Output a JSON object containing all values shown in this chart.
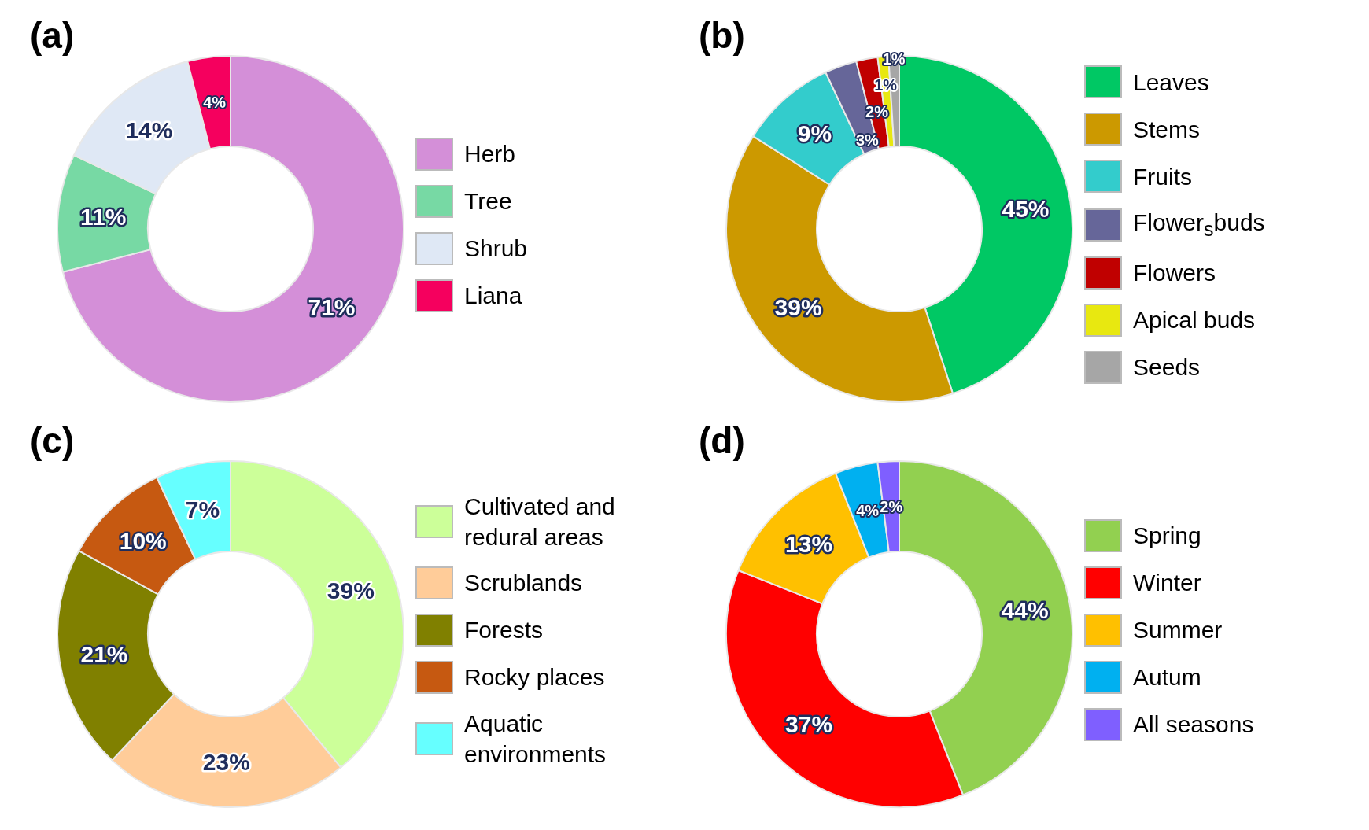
{
  "chart_data": [
    {
      "type": "donut",
      "title": "(a)",
      "categories": [
        "Herb",
        "Tree",
        "Shrub",
        "Liana"
      ],
      "values": [
        71,
        11,
        14,
        4
      ],
      "value_labels": [
        "71%",
        "11%",
        "14%",
        "4%"
      ],
      "colors": [
        "#d48fd8",
        "#77d9a4",
        "#dfe8f5",
        "#f5005e"
      ],
      "legend": "right"
    },
    {
      "type": "donut",
      "title": "(b)",
      "categories": [
        "Leaves",
        "Stems",
        "Fruits",
        "Flower$_{s}$buds",
        "Flowers",
        "Apical buds",
        "Seeds"
      ],
      "values": [
        45,
        39,
        9,
        3,
        2,
        1,
        1
      ],
      "value_labels": [
        "45%",
        "39%",
        "9%",
        "3%",
        "2%",
        "1%",
        "1%"
      ],
      "colors": [
        "#00c864",
        "#cc9900",
        "#33cccc",
        "#666699",
        "#c00000",
        "#e8e810",
        "#a6a6a6"
      ],
      "legend": "right"
    },
    {
      "type": "donut",
      "title": "(c)",
      "categories": [
        "Cultivated and redural areas",
        "Scrublands",
        "Forests",
        "Rocky places",
        "Aquatic environments"
      ],
      "values": [
        39,
        23,
        21,
        10,
        7
      ],
      "value_labels": [
        "39%",
        "23%",
        "21%",
        "10%",
        "7%"
      ],
      "colors": [
        "#ccff99",
        "#ffcc99",
        "#808000",
        "#c65911",
        "#66ffff"
      ],
      "legend": "right"
    },
    {
      "type": "donut",
      "title": "(d)",
      "categories": [
        "Spring",
        "Winter",
        "Summer",
        "Autum",
        "All seasons"
      ],
      "values": [
        44,
        37,
        13,
        4,
        2
      ],
      "value_labels": [
        "44%",
        "37%",
        "13%",
        "4%",
        "2%"
      ],
      "colors": [
        "#92d050",
        "#ff0000",
        "#ffc000",
        "#00b0f0",
        "#7f5fff"
      ],
      "legend": "right"
    }
  ]
}
